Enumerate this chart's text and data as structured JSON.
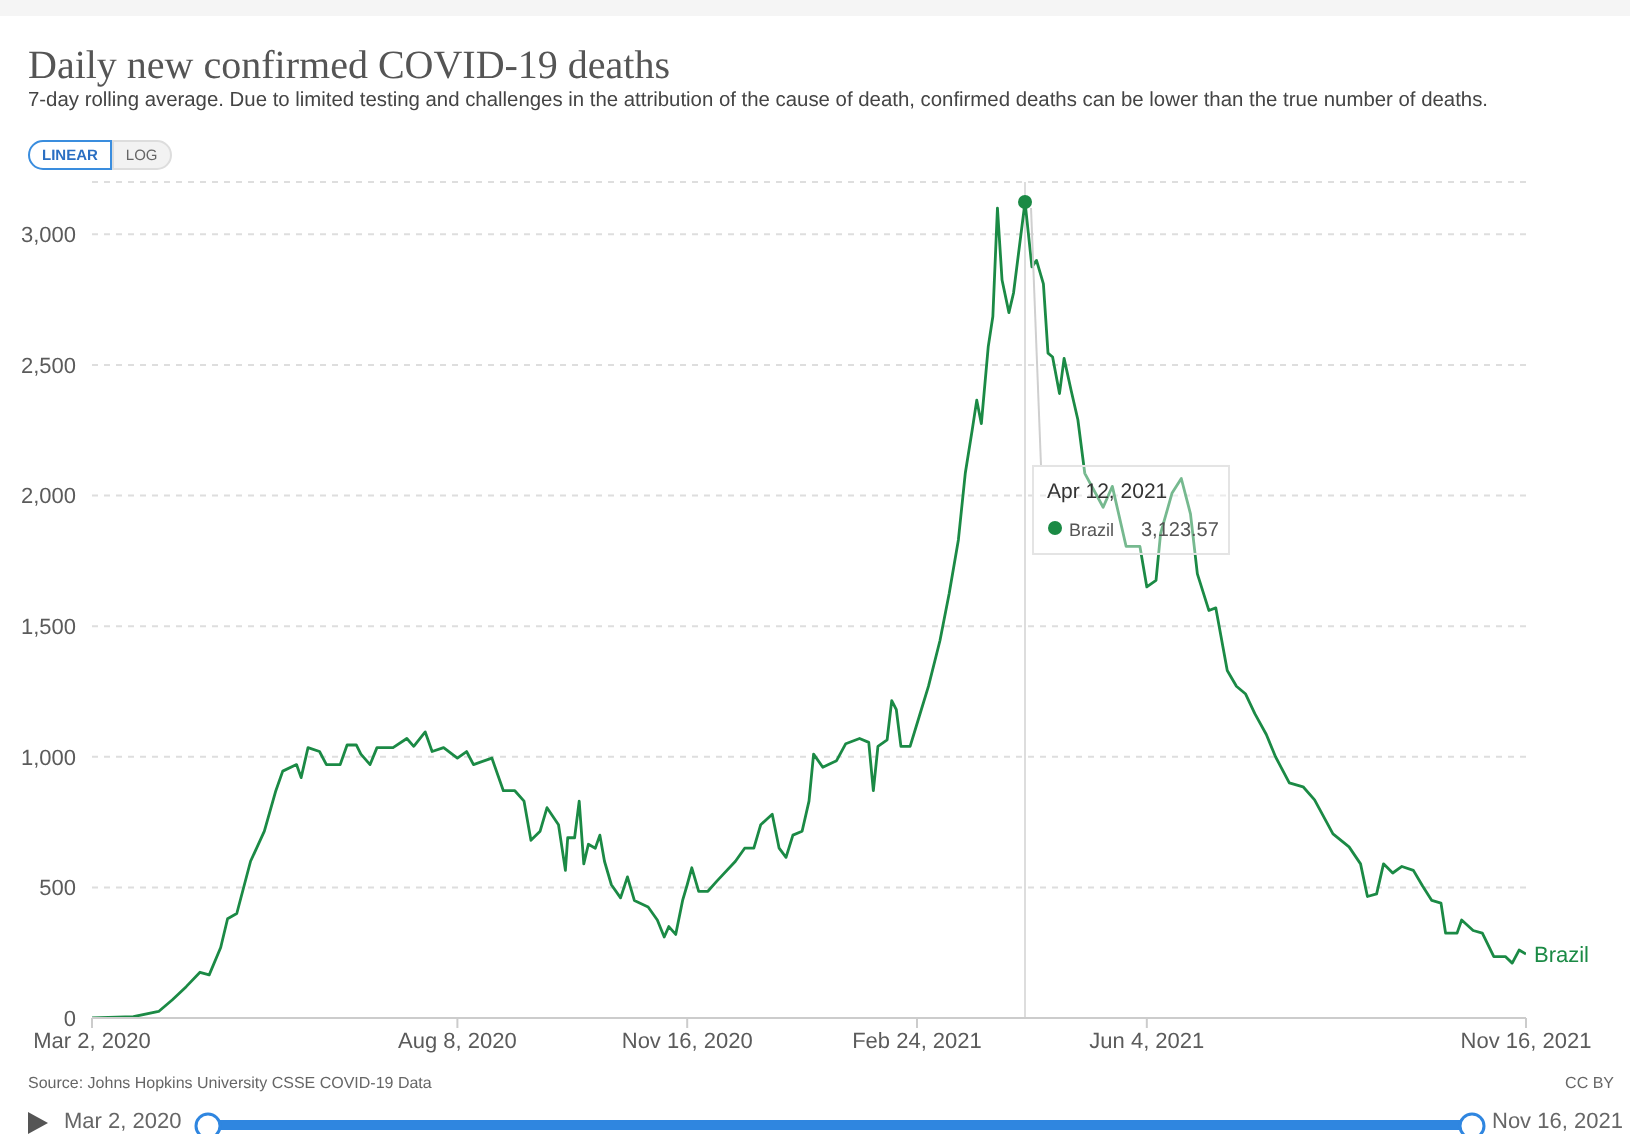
{
  "chart_data": {
    "type": "line",
    "title": "Daily new confirmed COVID-19 deaths",
    "subtitle": "7-day rolling average. Due to limited testing and challenges in the attribution of the cause of death, confirmed deaths can be lower than the true number of deaths.",
    "series": [
      {
        "name": "Brazil",
        "color": "#1b8a45",
        "x": [
          "2020-03-02",
          "2020-03-20",
          "2020-03-31",
          "2020-04-06",
          "2020-04-12",
          "2020-04-18",
          "2020-04-22",
          "2020-04-27",
          "2020-04-30",
          "2020-05-04",
          "2020-05-10",
          "2020-05-16",
          "2020-05-21",
          "2020-05-24",
          "2020-05-30",
          "2020-06-01",
          "2020-06-04",
          "2020-06-09",
          "2020-06-12",
          "2020-06-18",
          "2020-06-21",
          "2020-06-25",
          "2020-06-27",
          "2020-07-01",
          "2020-07-04",
          "2020-07-11",
          "2020-07-17",
          "2020-07-20",
          "2020-07-25",
          "2020-07-28",
          "2020-08-02",
          "2020-08-08",
          "2020-08-12",
          "2020-08-15",
          "2020-08-23",
          "2020-08-28",
          "2020-09-02",
          "2020-09-06",
          "2020-09-09",
          "2020-09-13",
          "2020-09-16",
          "2020-09-21",
          "2020-09-24",
          "2020-09-25",
          "2020-09-28",
          "2020-09-30",
          "2020-10-02",
          "2020-10-04",
          "2020-10-07",
          "2020-10-09",
          "2020-10-11",
          "2020-10-14",
          "2020-10-18",
          "2020-10-21",
          "2020-10-24",
          "2020-10-30",
          "2020-11-03",
          "2020-11-06",
          "2020-11-08",
          "2020-11-11",
          "2020-11-14",
          "2020-11-16",
          "2020-11-18",
          "2020-11-21",
          "2020-11-25",
          "2020-11-29",
          "2020-12-07",
          "2020-12-11",
          "2020-12-15",
          "2020-12-18",
          "2020-12-23",
          "2020-12-26",
          "2020-12-29",
          "2021-01-01",
          "2021-01-05",
          "2021-01-08",
          "2021-01-10",
          "2021-01-14",
          "2021-01-20",
          "2021-01-24",
          "2021-01-30",
          "2021-02-03",
          "2021-02-05",
          "2021-02-07",
          "2021-02-11",
          "2021-02-13",
          "2021-02-15",
          "2021-02-17",
          "2021-02-21",
          "2021-02-25",
          "2021-03-01",
          "2021-03-06",
          "2021-03-10",
          "2021-03-14",
          "2021-03-17",
          "2021-03-20",
          "2021-03-22",
          "2021-03-24",
          "2021-03-27",
          "2021-03-29",
          "2021-03-31",
          "2021-04-02",
          "2021-04-05",
          "2021-04-07",
          "2021-04-12",
          "2021-04-15",
          "2021-04-17",
          "2021-04-20",
          "2021-04-22",
          "2021-04-24",
          "2021-04-27",
          "2021-04-29",
          "2021-05-02",
          "2021-05-05",
          "2021-05-08",
          "2021-05-16",
          "2021-05-20",
          "2021-05-26",
          "2021-06-01",
          "2021-06-04",
          "2021-06-08",
          "2021-06-10",
          "2021-06-15",
          "2021-06-19",
          "2021-06-23",
          "2021-06-26",
          "2021-07-01",
          "2021-07-04",
          "2021-07-09",
          "2021-07-13",
          "2021-07-17",
          "2021-07-21",
          "2021-07-26",
          "2021-07-30",
          "2021-08-05",
          "2021-08-11",
          "2021-08-16",
          "2021-08-24",
          "2021-08-31",
          "2021-09-05",
          "2021-09-08",
          "2021-09-12",
          "2021-09-15",
          "2021-09-19",
          "2021-09-23",
          "2021-09-28",
          "2021-10-02",
          "2021-10-06",
          "2021-10-10",
          "2021-10-12",
          "2021-10-17",
          "2021-10-19",
          "2021-10-24",
          "2021-10-28",
          "2021-11-02",
          "2021-11-07",
          "2021-11-10",
          "2021-11-13",
          "2021-11-16"
        ],
        "values": [
          0,
          5,
          25,
          70,
          120,
          175,
          165,
          270,
          380,
          400,
          600,
          715,
          870,
          945,
          970,
          920,
          1035,
          1020,
          970,
          970,
          1045,
          1045,
          1010,
          970,
          1035,
          1035,
          1070,
          1040,
          1095,
          1020,
          1035,
          995,
          1020,
          970,
          995,
          870,
          870,
          830,
          680,
          715,
          805,
          740,
          565,
          690,
          690,
          830,
          590,
          665,
          650,
          700,
          600,
          510,
          460,
          540,
          450,
          425,
          375,
          310,
          350,
          320,
          450,
          510,
          575,
          485,
          485,
          525,
          600,
          650,
          650,
          740,
          780,
          650,
          615,
          700,
          715,
          830,
          1010,
          960,
          985,
          1050,
          1070,
          1055,
          870,
          1040,
          1065,
          1215,
          1180,
          1040,
          1040,
          1155,
          1270,
          1445,
          1625,
          1830,
          2085,
          2250,
          2365,
          2275,
          2570,
          2685,
          3100,
          2825,
          2700,
          2775,
          3123.57,
          2875,
          2900,
          2810,
          2545,
          2530,
          2390,
          2525,
          2405,
          2290,
          2085,
          1955,
          2035,
          1805,
          1805,
          1650,
          1675,
          1855,
          2010,
          2065,
          1930,
          1700,
          1560,
          1570,
          1330,
          1270,
          1240,
          1165,
          1085,
          1000,
          900,
          885,
          835,
          705,
          655,
          590,
          465,
          475,
          590,
          555,
          580,
          565,
          505,
          450,
          440,
          325,
          325,
          375,
          335,
          325,
          235,
          235,
          210,
          260,
          245
        ]
      }
    ],
    "xlim": [
      "2020-03-02",
      "2021-11-16"
    ],
    "xticks": [
      {
        "value": "2020-03-02",
        "label": "Mar 2, 2020"
      },
      {
        "value": "2020-08-08",
        "label": "Aug 8, 2020"
      },
      {
        "value": "2020-11-16",
        "label": "Nov 16, 2020"
      },
      {
        "value": "2021-02-24",
        "label": "Feb 24, 2021"
      },
      {
        "value": "2021-06-04",
        "label": "Jun 4, 2021"
      },
      {
        "value": "2021-11-16",
        "label": "Nov 16, 2021"
      }
    ],
    "ylim": [
      0,
      3200
    ],
    "yticks": [
      0,
      500,
      {
        "value": 1000,
        "label": "1,000"
      },
      {
        "value": 1500,
        "label": "1,500"
      },
      {
        "value": 2000,
        "label": "2,000"
      },
      {
        "value": 2500,
        "label": "2,500"
      },
      {
        "value": 3000,
        "label": "3,000"
      }
    ],
    "grid": "y",
    "legend": "right",
    "ref_lines": [
      {
        "axis": "x",
        "value": "2021-04-12",
        "color": "#dddddd"
      }
    ],
    "annotations": [
      {
        "text": "Apr 12, 2021",
        "x": "2021-04-12",
        "y": 3123.57
      },
      "LINEAR",
      "LOG",
      "Source: Johns Hopkins University CSSE COVID-19 Data",
      "CC BY",
      "Mar 2, 2020",
      "Nov 16, 2021",
      "3,123.57"
    ]
  }
}
